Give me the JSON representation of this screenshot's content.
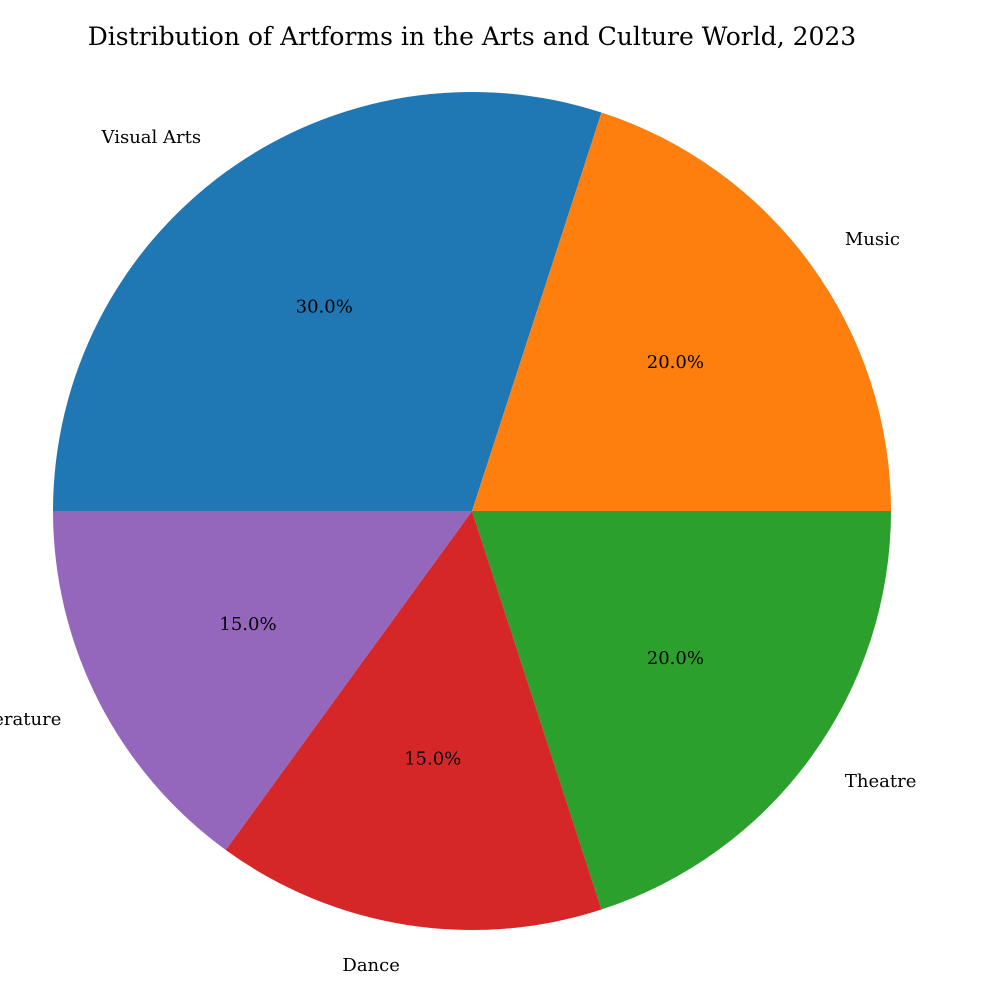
{
  "chart_data": {
    "type": "pie",
    "title": "Distribution of Artforms in the Arts and Culture World, 2023",
    "categories": [
      "Visual Arts",
      "Music",
      "Theatre",
      "Dance",
      "Literature"
    ],
    "values": [
      30,
      20,
      20,
      15,
      15
    ],
    "percent_labels": [
      "30.0%",
      "20.0%",
      "20.0%",
      "15.0%",
      "15.0%"
    ],
    "colors": [
      "#1f77b4",
      "#ff7f0e",
      "#2ca02c",
      "#d62728",
      "#9467bd"
    ],
    "legend": "none",
    "start_angle_deg": 180,
    "direction": "clockwise"
  }
}
